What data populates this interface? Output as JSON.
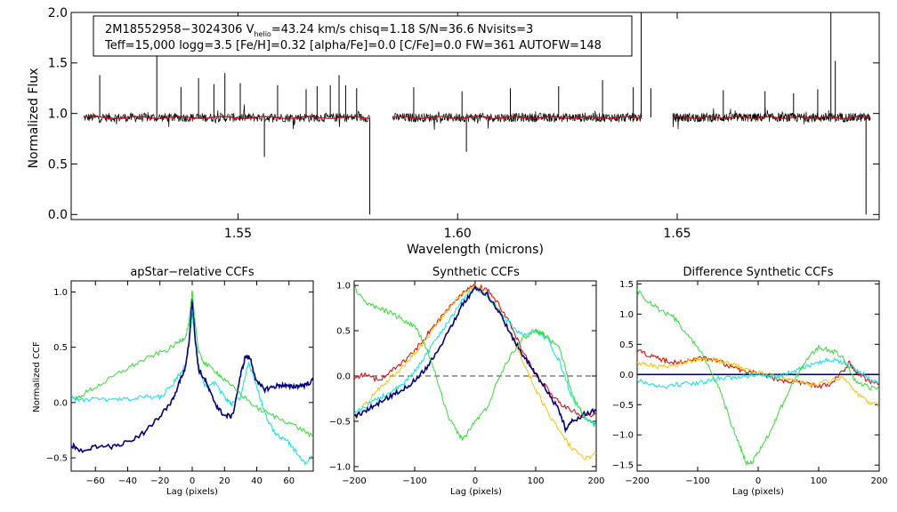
{
  "chart_data": [
    {
      "type": "line",
      "title": "",
      "xlabel": "Wavelength (microns)",
      "ylabel": "Normalized Flux",
      "xlim": [
        1.512,
        1.696
      ],
      "ylim": [
        -0.05,
        2.0
      ],
      "xticks": [
        1.55,
        1.6,
        1.65
      ],
      "xtick_labels": [
        "1.55",
        "1.60",
        "1.65"
      ],
      "yticks": [
        0.0,
        0.5,
        1.0,
        1.5,
        2.0
      ],
      "ytick_labels": [
        "0.0",
        "0.5",
        "1.0",
        "1.5",
        "2.0"
      ],
      "annotation": {
        "line1_prefix": "2M18552958−3024306  V",
        "line1_sub": "helio",
        "line1_suffix": "=43.24 km/s  chisq=1.18  S/N=36.6  Nvisits=3",
        "line2": "Teff=15,000 logg=3.5 [Fe/H]=0.32 [alpha/Fe]=0.0 [C/Fe]=0.0 FW=361 AUTOFW=148"
      },
      "series": [
        {
          "name": "observed spectrum",
          "color": "#000000",
          "segments": [
            [
              1.5148,
              1.58
            ],
            [
              1.5852,
              1.642
            ],
            [
              1.649,
              1.694
            ]
          ],
          "level": 0.96,
          "spikes": [
            [
              1.5185,
              1.38
            ],
            [
              1.5315,
              1.65
            ],
            [
              1.537,
              1.26
            ],
            [
              1.541,
              1.35
            ],
            [
              1.5445,
              1.29
            ],
            [
              1.547,
              1.4
            ],
            [
              1.5505,
              1.3
            ],
            [
              1.556,
              0.57
            ],
            [
              1.559,
              1.28
            ],
            [
              1.5655,
              1.24
            ],
            [
              1.568,
              1.27
            ],
            [
              1.571,
              1.28
            ],
            [
              1.573,
              1.38
            ],
            [
              1.5745,
              1.28
            ],
            [
              1.577,
              1.25
            ],
            [
              1.58,
              0.0
            ],
            [
              1.59,
              1.26
            ],
            [
              1.601,
              1.22
            ],
            [
              1.602,
              0.62
            ],
            [
              1.612,
              1.25
            ],
            [
              1.623,
              1.27
            ],
            [
              1.633,
              1.33
            ],
            [
              1.64,
              1.26
            ],
            [
              1.6418,
              2.0
            ],
            [
              1.644,
              1.25
            ],
            [
              1.6605,
              1.23
            ],
            [
              1.67,
              1.22
            ],
            [
              1.6765,
              1.2
            ],
            [
              1.682,
              1.24
            ],
            [
              1.685,
              2.0
            ],
            [
              1.686,
              1.52
            ],
            [
              1.693,
              0.0
            ]
          ]
        },
        {
          "name": "model fit",
          "color": "#d40000",
          "segments": [
            [
              1.5148,
              1.58
            ],
            [
              1.5852,
              1.642
            ],
            [
              1.649,
              1.694
            ]
          ],
          "level": 0.96
        }
      ]
    },
    {
      "type": "line",
      "title": "apStar−relative CCFs",
      "xlabel": "Lag (pixels)",
      "ylabel": "Normalized CCF",
      "xlim": [
        -75,
        75
      ],
      "ylim": [
        -0.62,
        1.1
      ],
      "xticks": [
        -60,
        -40,
        -20,
        0,
        20,
        40,
        60
      ],
      "xtick_labels": [
        "−60",
        "−40",
        "−20",
        "0",
        "20",
        "40",
        "60"
      ],
      "yticks": [
        -0.5,
        0.0,
        0.5,
        1.0
      ],
      "ytick_labels": [
        "−0.5",
        "0.0",
        "0.5",
        "1.0"
      ],
      "series": [
        {
          "name": "cyan",
          "color": "#00e5ee",
          "x": [
            -75,
            -70,
            -60,
            -50,
            -40,
            -30,
            -20,
            -12,
            -8,
            -4,
            -2,
            0,
            2,
            4,
            8,
            14,
            20,
            24,
            30,
            35,
            40,
            45,
            50,
            55,
            60,
            65,
            70,
            75
          ],
          "y": [
            0.05,
            0.02,
            0.03,
            0.02,
            0.03,
            0.05,
            0.05,
            0.16,
            0.26,
            0.35,
            0.55,
            0.8,
            0.55,
            0.32,
            0.15,
            0.18,
            0.05,
            -0.02,
            0.05,
            0.36,
            0.15,
            -0.1,
            -0.25,
            -0.32,
            -0.36,
            -0.46,
            -0.55,
            -0.48
          ]
        },
        {
          "name": "navy",
          "color": "#000080",
          "x": [
            -75,
            -70,
            -60,
            -50,
            -40,
            -30,
            -20,
            -12,
            -8,
            -4,
            -2,
            0,
            2,
            4,
            8,
            12,
            16,
            20,
            25,
            30,
            33,
            36,
            40,
            45,
            50,
            55,
            60,
            65,
            70,
            75
          ],
          "y": [
            -0.38,
            -0.44,
            -0.4,
            -0.4,
            -0.36,
            -0.27,
            -0.12,
            0.02,
            0.18,
            0.32,
            0.55,
            0.95,
            0.55,
            0.3,
            0.2,
            0.06,
            -0.05,
            -0.12,
            -0.12,
            0.25,
            0.42,
            0.4,
            0.18,
            0.12,
            0.14,
            0.16,
            0.14,
            0.15,
            0.16,
            0.2
          ]
        },
        {
          "name": "green",
          "color": "#33dd33",
          "x": [
            -72,
            -65,
            -55,
            -45,
            -35,
            -25,
            -15,
            -8,
            -4,
            -2,
            0,
            2,
            4,
            8,
            15,
            20,
            30,
            40,
            50,
            60,
            70,
            75
          ],
          "y": [
            0.03,
            0.1,
            0.18,
            0.27,
            0.35,
            0.42,
            0.48,
            0.55,
            0.6,
            0.72,
            1.0,
            0.7,
            0.45,
            0.35,
            0.28,
            0.2,
            0.08,
            -0.05,
            -0.12,
            -0.18,
            -0.26,
            -0.32
          ]
        }
      ]
    },
    {
      "type": "line",
      "title": "Synthetic CCFs",
      "xlabel": "Lag (pixels)",
      "ylabel": "",
      "xlim": [
        -200,
        200
      ],
      "ylim": [
        -1.05,
        1.05
      ],
      "xticks": [
        -200,
        -100,
        0,
        100,
        200
      ],
      "xtick_labels": [
        "−200",
        "−100",
        "0",
        "100",
        "200"
      ],
      "yticks": [
        -1.0,
        -0.5,
        0.0,
        0.5,
        1.0
      ],
      "ytick_labels": [
        "−1.0",
        "−0.5",
        "0.0",
        "0.5",
        "1.0"
      ],
      "zero_line": true,
      "series": [
        {
          "name": "red",
          "color": "#e00000",
          "x": [
            -200,
            -180,
            -160,
            -140,
            -120,
            -100,
            -80,
            -60,
            -40,
            -20,
            0,
            20,
            40,
            60,
            80,
            100,
            120,
            140,
            160,
            180,
            200
          ],
          "y": [
            -0.02,
            0.02,
            -0.05,
            0.05,
            0.15,
            0.28,
            0.45,
            0.62,
            0.78,
            0.92,
            1.0,
            0.95,
            0.78,
            0.55,
            0.25,
            0.02,
            -0.15,
            -0.3,
            -0.38,
            -0.45,
            -0.42
          ]
        },
        {
          "name": "orange",
          "color": "#ffbf00",
          "x": [
            -200,
            -180,
            -160,
            -140,
            -120,
            -100,
            -80,
            -60,
            -40,
            -20,
            0,
            20,
            40,
            60,
            80,
            100,
            120,
            140,
            160,
            180,
            200
          ],
          "y": [
            -0.45,
            -0.3,
            -0.15,
            -0.02,
            0.1,
            0.25,
            0.42,
            0.6,
            0.78,
            0.92,
            1.0,
            0.92,
            0.72,
            0.45,
            0.15,
            -0.15,
            -0.4,
            -0.62,
            -0.8,
            -0.92,
            -0.85
          ]
        },
        {
          "name": "cyan",
          "color": "#00e5ee",
          "x": [
            -200,
            -180,
            -160,
            -140,
            -120,
            -100,
            -80,
            -60,
            -40,
            -20,
            0,
            20,
            40,
            60,
            80,
            100,
            120,
            140,
            160,
            180,
            200
          ],
          "y": [
            -0.4,
            -0.33,
            -0.25,
            -0.18,
            -0.1,
            0.05,
            0.25,
            0.45,
            0.65,
            0.85,
            0.97,
            0.88,
            0.72,
            0.55,
            0.45,
            0.5,
            0.4,
            0.15,
            -0.25,
            -0.45,
            -0.55
          ]
        },
        {
          "name": "navy",
          "color": "#000080",
          "x": [
            -200,
            -180,
            -160,
            -140,
            -120,
            -100,
            -80,
            -60,
            -40,
            -20,
            0,
            20,
            40,
            60,
            80,
            100,
            120,
            140,
            150,
            160,
            180,
            200
          ],
          "y": [
            -0.45,
            -0.38,
            -0.3,
            -0.22,
            -0.15,
            -0.05,
            0.1,
            0.3,
            0.55,
            0.8,
            0.97,
            0.9,
            0.7,
            0.45,
            0.22,
            0.02,
            -0.18,
            -0.4,
            -0.6,
            -0.5,
            -0.42,
            -0.38
          ]
        },
        {
          "name": "green",
          "color": "#33dd33",
          "x": [
            -200,
            -180,
            -160,
            -140,
            -120,
            -100,
            -80,
            -60,
            -45,
            -30,
            -20,
            0,
            20,
            40,
            60,
            80,
            100,
            110,
            120,
            140,
            160,
            180,
            200
          ],
          "y": [
            0.98,
            0.8,
            0.75,
            0.7,
            0.62,
            0.55,
            0.3,
            -0.1,
            -0.45,
            -0.62,
            -0.7,
            -0.5,
            -0.35,
            0.0,
            0.25,
            0.42,
            0.5,
            0.48,
            0.42,
            0.3,
            -0.2,
            -0.45,
            -0.55
          ]
        }
      ]
    },
    {
      "type": "line",
      "title": "Difference Synthetic CCFs",
      "xlabel": "Lag (pixels)",
      "ylabel": "",
      "xlim": [
        -200,
        200
      ],
      "ylim": [
        -1.6,
        1.55
      ],
      "xticks": [
        -200,
        -100,
        0,
        100,
        200
      ],
      "xtick_labels": [
        "−200",
        "−100",
        "0",
        "100",
        "200"
      ],
      "yticks": [
        -1.5,
        -1.0,
        -0.5,
        0.0,
        0.5,
        1.0,
        1.5
      ],
      "ytick_labels": [
        "−1.5",
        "−1.0",
        "−0.5",
        "0.0",
        "0.5",
        "1.0",
        "1.5"
      ],
      "zero_line": true,
      "series": [
        {
          "name": "navy",
          "color": "#000080",
          "x": [
            -200,
            200
          ],
          "y": [
            0.0,
            0.0
          ]
        },
        {
          "name": "red",
          "color": "#e00000",
          "x": [
            -200,
            -180,
            -160,
            -140,
            -120,
            -100,
            -80,
            -60,
            -40,
            -20,
            0,
            20,
            40,
            60,
            80,
            100,
            120,
            140,
            150,
            160,
            180,
            200
          ],
          "y": [
            0.4,
            0.32,
            0.25,
            0.2,
            0.22,
            0.27,
            0.26,
            0.2,
            0.1,
            0.05,
            0.02,
            -0.05,
            -0.1,
            -0.12,
            -0.15,
            -0.2,
            -0.15,
            0.05,
            0.2,
            0.05,
            -0.1,
            -0.15
          ]
        },
        {
          "name": "orange",
          "color": "#ffbf00",
          "x": [
            -200,
            -180,
            -160,
            -140,
            -120,
            -100,
            -80,
            -60,
            -40,
            -20,
            0,
            20,
            40,
            60,
            80,
            100,
            120,
            140,
            160,
            180,
            200
          ],
          "y": [
            0.18,
            0.15,
            0.12,
            0.15,
            0.2,
            0.25,
            0.25,
            0.22,
            0.15,
            0.08,
            0.02,
            0.0,
            -0.05,
            -0.1,
            -0.15,
            -0.15,
            -0.1,
            -0.05,
            -0.3,
            -0.45,
            -0.5
          ]
        },
        {
          "name": "cyan",
          "color": "#00e5ee",
          "x": [
            -200,
            -180,
            -160,
            -140,
            -120,
            -100,
            -80,
            -60,
            -40,
            -20,
            0,
            20,
            40,
            60,
            80,
            100,
            120,
            140,
            160,
            180,
            200
          ],
          "y": [
            -0.1,
            -0.15,
            -0.2,
            -0.18,
            -0.15,
            -0.15,
            -0.1,
            -0.05,
            -0.05,
            -0.02,
            0.0,
            -0.05,
            -0.02,
            0.05,
            0.15,
            0.2,
            0.25,
            0.2,
            0.1,
            -0.05,
            -0.15
          ]
        },
        {
          "name": "green",
          "color": "#33dd33",
          "x": [
            -200,
            -180,
            -160,
            -140,
            -120,
            -100,
            -80,
            -60,
            -45,
            -30,
            -20,
            -10,
            0,
            20,
            40,
            60,
            80,
            100,
            120,
            140,
            160,
            180,
            200
          ],
          "y": [
            1.38,
            1.2,
            1.05,
            0.95,
            0.7,
            0.45,
            0.1,
            -0.35,
            -0.8,
            -1.2,
            -1.45,
            -1.45,
            -1.3,
            -0.95,
            -0.5,
            -0.1,
            0.25,
            0.45,
            0.4,
            0.3,
            -0.1,
            -0.2,
            -0.25
          ]
        }
      ]
    }
  ]
}
